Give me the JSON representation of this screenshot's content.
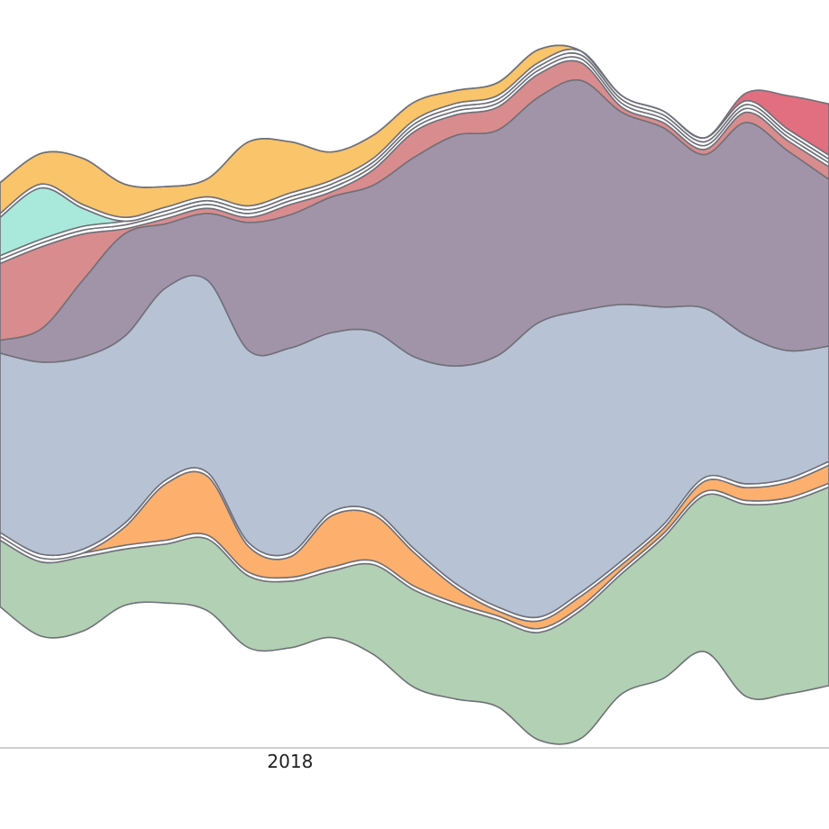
{
  "chart_data": {
    "type": "area",
    "layout": "streamgraph",
    "x": [
      0,
      1,
      2,
      3,
      4,
      5,
      6,
      7,
      8,
      9,
      10,
      11,
      12,
      13,
      14,
      15,
      16,
      17,
      18,
      19,
      20
    ],
    "x_tick_labels": [
      {
        "x": 7,
        "label": "2018"
      }
    ],
    "x_range": [
      0,
      20
    ],
    "y_range": [
      -270,
      280
    ],
    "grid": false,
    "legend": "none",
    "series": [
      {
        "color": "#b2d0b3",
        "values": [
          52,
          58,
          58,
          44,
          46,
          56,
          56,
          52,
          52,
          70,
          76,
          72,
          68,
          84,
          100,
          94,
          110,
          122,
          150,
          150,
          155
        ]
      },
      {
        "color": "#ffffff",
        "values": [
          3,
          3,
          3,
          3,
          3,
          3,
          3,
          3,
          3,
          3,
          3,
          3,
          3,
          3,
          3,
          3,
          3,
          3,
          3,
          3,
          3
        ]
      },
      {
        "color": "#fdb06d",
        "values": [
          0,
          0,
          0,
          14,
          44,
          46,
          20,
          16,
          40,
          36,
          26,
          12,
          4,
          6,
          8,
          4,
          4,
          8,
          10,
          12,
          14
        ]
      },
      {
        "color": "#ffffff",
        "values": [
          3,
          3,
          3,
          3,
          3,
          3,
          3,
          3,
          3,
          3,
          3,
          3,
          3,
          3,
          3,
          3,
          3,
          3,
          3,
          3,
          3
        ]
      },
      {
        "color": "#b7c2d4",
        "values": [
          140,
          150,
          150,
          146,
          150,
          150,
          150,
          160,
          140,
          140,
          150,
          170,
          196,
          230,
          220,
          200,
          170,
          132,
          116,
          100,
          90
        ]
      },
      {
        "color": "#a294a8",
        "values": [
          10,
          26,
          60,
          80,
          50,
          52,
          100,
          104,
          106,
          114,
          156,
          180,
          176,
          176,
          180,
          150,
          140,
          120,
          166,
          156,
          130
        ]
      },
      {
        "color": "#d98c8e",
        "values": [
          60,
          64,
          36,
          4,
          4,
          4,
          4,
          8,
          4,
          12,
          20,
          16,
          18,
          18,
          14,
          4,
          4,
          4,
          8,
          8,
          10
        ]
      },
      {
        "color": "#ffffff",
        "values": [
          3,
          3,
          3,
          3,
          3,
          3,
          3,
          3,
          3,
          3,
          3,
          3,
          3,
          3,
          3,
          3,
          3,
          3,
          3,
          3,
          3
        ]
      },
      {
        "color": "#ffffff",
        "values": [
          3,
          3,
          3,
          3,
          3,
          3,
          3,
          3,
          3,
          3,
          3,
          3,
          3,
          3,
          3,
          3,
          3,
          3,
          3,
          3,
          3
        ]
      },
      {
        "color": "#a9e9dc",
        "values": [
          30,
          40,
          14,
          0,
          0,
          0,
          0,
          0,
          0,
          0,
          0,
          0,
          0,
          0,
          0,
          0,
          0,
          0,
          0,
          0,
          0
        ]
      },
      {
        "color": "#ffffff",
        "values": [
          3,
          3,
          3,
          3,
          3,
          3,
          3,
          3,
          3,
          3,
          3,
          3,
          3,
          3,
          3,
          3,
          3,
          3,
          3,
          3,
          3
        ]
      },
      {
        "color": "#f9c46a",
        "values": [
          24,
          24,
          36,
          26,
          16,
          14,
          50,
          40,
          22,
          18,
          14,
          10,
          10,
          10,
          0,
          0,
          0,
          0,
          0,
          0,
          0
        ]
      },
      {
        "color": "#e26f80",
        "values": [
          0,
          0,
          0,
          0,
          0,
          0,
          0,
          0,
          0,
          0,
          0,
          0,
          0,
          0,
          0,
          0,
          0,
          0,
          6,
          26,
          40
        ]
      }
    ]
  }
}
